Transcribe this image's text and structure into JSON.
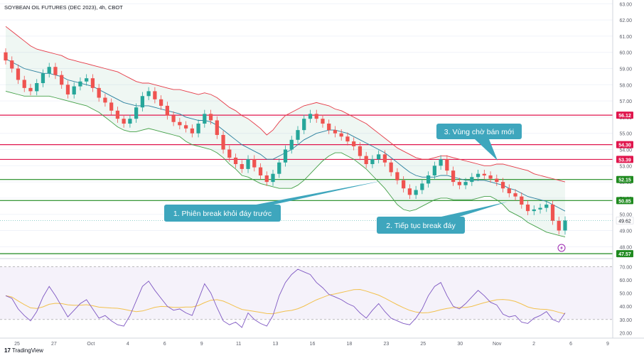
{
  "chart_data": {
    "type": "candlestick",
    "title": "SOYBEAN OIL FUTURES (DEC 2023), 4h, CBOT",
    "price_ylim": [
      47.4,
      63.1
    ],
    "price_ticks": [
      "63.00",
      "62.00",
      "61.00",
      "60.00",
      "59.00",
      "58.00",
      "57.00",
      "56.00",
      "55.00",
      "54.00",
      "53.00",
      "52.00",
      "51.00",
      "50.00",
      "49.00",
      "48.00"
    ],
    "rsi_ylim": [
      17,
      75
    ],
    "rsi_ticks": [
      "70.00",
      "60.00",
      "50.00",
      "40.00",
      "30.00",
      "20.00"
    ],
    "rsi_band": [
      30,
      70
    ],
    "time_labels": [
      "25",
      "27",
      "Oct",
      "4",
      "6",
      "9",
      "11",
      "13",
      "16",
      "18",
      "23",
      "25",
      "30",
      "Nov",
      "2",
      "6",
      "9"
    ],
    "levels": [
      {
        "value": 56.12,
        "label": "56.12",
        "color": "#e0164d"
      },
      {
        "value": 54.3,
        "label": "54.30",
        "color": "#e0164d"
      },
      {
        "value": 53.39,
        "label": "53.39",
        "color": "#e0164d"
      },
      {
        "value": 52.15,
        "label": "52.15",
        "color": "#1f8a1f"
      },
      {
        "value": 50.85,
        "label": "50.85",
        "color": "#1f8a1f"
      },
      {
        "value": 47.57,
        "label": "47.57",
        "color": "#1f8a1f"
      }
    ],
    "last_price": {
      "value": 49.62,
      "label": "49.62"
    },
    "close_series": [
      59.5,
      59.0,
      58.3,
      57.8,
      57.6,
      58.1,
      58.7,
      59.1,
      58.6,
      58.0,
      57.4,
      57.9,
      58.2,
      58.4,
      57.8,
      57.2,
      56.9,
      56.4,
      55.9,
      55.6,
      55.9,
      56.6,
      57.3,
      57.6,
      57.1,
      56.7,
      56.1,
      55.7,
      55.5,
      55.3,
      55.0,
      55.6,
      56.2,
      55.8,
      54.9,
      54.0,
      53.5,
      53.1,
      52.8,
      53.4,
      52.9,
      52.4,
      52.0,
      52.5,
      53.2,
      54.0,
      54.6,
      55.2,
      55.9,
      56.2,
      55.9,
      55.6,
      55.2,
      55.0,
      54.8,
      54.5,
      54.2,
      53.6,
      53.1,
      53.4,
      53.7,
      53.2,
      52.6,
      52.1,
      51.6,
      51.2,
      51.5,
      51.9,
      52.4,
      53.0,
      53.4,
      52.7,
      52.0,
      51.8,
      52.0,
      52.3,
      52.5,
      52.4,
      52.2,
      52.0,
      51.6,
      51.3,
      51.1,
      50.6,
      50.2,
      50.3,
      50.4,
      50.6,
      49.6,
      49.0,
      49.62
    ],
    "rsi_series": [
      48,
      46,
      38,
      33,
      29,
      36,
      47,
      55,
      48,
      40,
      32,
      37,
      42,
      45,
      38,
      31,
      33,
      29,
      26,
      25,
      33,
      44,
      55,
      59,
      52,
      46,
      40,
      37,
      38,
      35,
      33,
      45,
      57,
      50,
      39,
      29,
      26,
      28,
      24,
      35,
      30,
      27,
      25,
      33,
      48,
      58,
      64,
      68,
      66,
      64,
      58,
      54,
      49,
      47,
      45,
      42,
      40,
      35,
      31,
      37,
      42,
      36,
      31,
      29,
      27,
      26,
      31,
      38,
      48,
      55,
      58,
      48,
      40,
      38,
      42,
      47,
      52,
      48,
      43,
      41,
      34,
      32,
      33,
      28,
      27,
      31,
      33,
      36,
      30,
      28,
      35
    ],
    "bb_upper": [
      61.6,
      61.3,
      61.0,
      60.7,
      60.4,
      60.2,
      60.1,
      60.0,
      59.9,
      59.8,
      59.6,
      59.5,
      59.4,
      59.3,
      59.2,
      59.1,
      59.0,
      58.9,
      58.8,
      58.6,
      58.4,
      58.2,
      58.1,
      58.1,
      58.0,
      57.9,
      57.8,
      57.7,
      57.7,
      57.6,
      57.5,
      57.4,
      57.5,
      57.4,
      57.2,
      56.9,
      56.6,
      56.4,
      56.1,
      55.9,
      55.6,
      55.3,
      54.9,
      55.2,
      55.7,
      56.1,
      56.3,
      56.5,
      56.7,
      56.8,
      56.9,
      56.8,
      56.7,
      56.5,
      56.4,
      56.2,
      56.0,
      55.8,
      55.6,
      55.3,
      55.0,
      54.7,
      54.4,
      54.1,
      53.9,
      53.7,
      53.5,
      53.4,
      53.4,
      53.5,
      53.6,
      53.6,
      53.5,
      53.4,
      53.3,
      53.2,
      53.1,
      53.0,
      53.0,
      53.1,
      53.1,
      53.0,
      52.9,
      52.8,
      52.7,
      52.5,
      52.4,
      52.3,
      52.2,
      52.1,
      52.0
    ],
    "bb_basis": [
      59.6,
      59.4,
      59.2,
      59.0,
      58.9,
      58.8,
      58.7,
      58.7,
      58.6,
      58.5,
      58.3,
      58.2,
      58.1,
      58.0,
      57.9,
      57.7,
      57.5,
      57.3,
      57.1,
      56.9,
      56.8,
      56.7,
      56.7,
      56.7,
      56.6,
      56.5,
      56.4,
      56.3,
      56.2,
      56.0,
      55.9,
      55.8,
      55.8,
      55.7,
      55.5,
      55.2,
      54.9,
      54.6,
      54.3,
      54.1,
      53.9,
      53.7,
      53.4,
      53.4,
      53.6,
      53.8,
      54.0,
      54.3,
      54.6,
      54.8,
      55.0,
      55.1,
      55.2,
      55.2,
      55.1,
      55.0,
      54.8,
      54.6,
      54.4,
      54.2,
      54.0,
      53.8,
      53.5,
      53.2,
      52.9,
      52.6,
      52.4,
      52.3,
      52.3,
      52.3,
      52.4,
      52.4,
      52.3,
      52.2,
      52.1,
      52.1,
      52.1,
      52.1,
      52.0,
      51.9,
      51.8,
      51.6,
      51.5,
      51.3,
      51.1,
      51.0,
      50.9,
      50.8,
      50.6,
      50.4,
      50.2
    ],
    "bb_lower": [
      57.6,
      57.5,
      57.4,
      57.3,
      57.3,
      57.3,
      57.3,
      57.3,
      57.2,
      57.1,
      57.0,
      56.9,
      56.8,
      56.7,
      56.5,
      56.3,
      56.0,
      55.7,
      55.4,
      55.2,
      55.1,
      55.1,
      55.2,
      55.3,
      55.2,
      55.1,
      55.0,
      54.9,
      54.8,
      54.5,
      54.3,
      54.2,
      54.1,
      54.0,
      53.8,
      53.5,
      53.1,
      52.8,
      52.4,
      52.3,
      52.1,
      51.9,
      51.8,
      51.7,
      51.6,
      51.6,
      51.6,
      51.8,
      52.1,
      52.5,
      52.9,
      53.3,
      53.6,
      53.8,
      53.8,
      53.6,
      53.4,
      53.1,
      52.8,
      52.4,
      52.0,
      51.6,
      51.1,
      50.6,
      50.3,
      50.2,
      50.3,
      50.5,
      50.7,
      50.9,
      51.0,
      51.0,
      50.9,
      50.9,
      50.9,
      50.9,
      51.0,
      51.1,
      51.1,
      50.9,
      50.6,
      50.2,
      50.0,
      49.8,
      49.5,
      49.3,
      49.1,
      48.9,
      48.8,
      48.7,
      48.6
    ],
    "annotations": [
      {
        "text": "1. Phiên break khỏi đáy trước"
      },
      {
        "text": "2. Tiếp tục break đáy"
      },
      {
        "text": "3. Vùng chờ bán mới"
      }
    ],
    "branding": "TradingView"
  }
}
